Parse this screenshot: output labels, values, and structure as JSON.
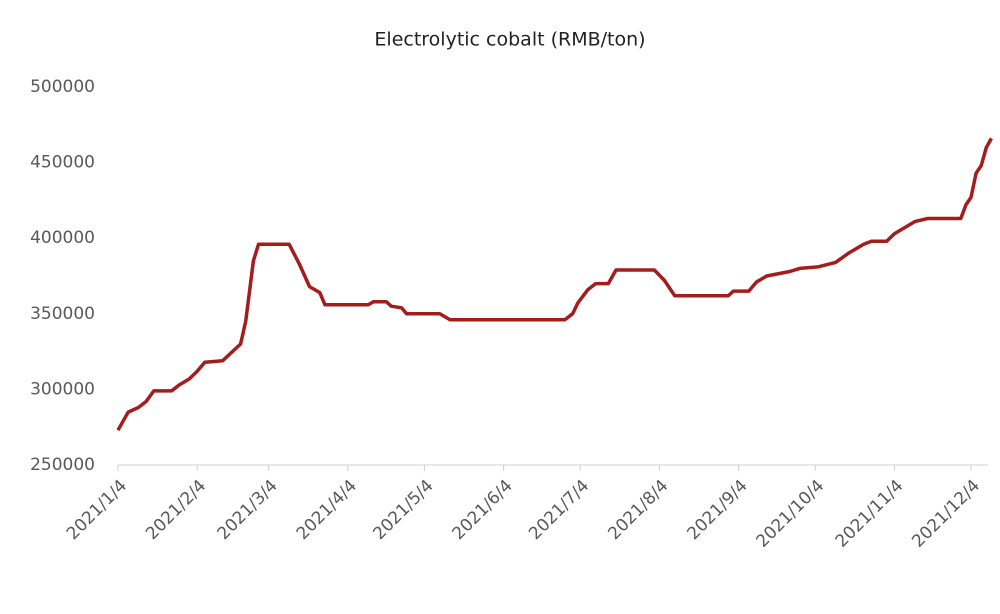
{
  "chart_data": {
    "type": "line",
    "title": "Electrolytic cobalt (RMB/ton)",
    "x": [
      "2021/1/4",
      "2021/1/8",
      "2021/1/12",
      "2021/1/15",
      "2021/1/18",
      "2021/1/25",
      "2021/1/28",
      "2021/2/1",
      "2021/2/4",
      "2021/2/7",
      "2021/2/14",
      "2021/2/21",
      "2021/2/23",
      "2021/2/26",
      "2021/2/28",
      "2021/3/12",
      "2021/3/16",
      "2021/3/20",
      "2021/3/24",
      "2021/3/26",
      "2021/4/12",
      "2021/4/14",
      "2021/4/19",
      "2021/4/21",
      "2021/4/25",
      "2021/4/27",
      "2021/5/10",
      "2021/5/14",
      "2021/6/28",
      "2021/7/1",
      "2021/7/3",
      "2021/7/7",
      "2021/7/10",
      "2021/7/15",
      "2021/7/18",
      "2021/8/2",
      "2021/8/6",
      "2021/8/10",
      "2021/8/31",
      "2021/9/2",
      "2021/9/8",
      "2021/9/11",
      "2021/9/15",
      "2021/9/24",
      "2021/9/28",
      "2021/10/5",
      "2021/10/12",
      "2021/10/17",
      "2021/10/23",
      "2021/10/26",
      "2021/11/1",
      "2021/11/4",
      "2021/11/9",
      "2021/11/12",
      "2021/11/17",
      "2021/11/30",
      "2021/12/2",
      "2021/12/4",
      "2021/12/6",
      "2021/12/8",
      "2021/12/10",
      "2021/12/12"
    ],
    "series": [
      {
        "name": "Electrolytic cobalt",
        "color": "#a31d1d",
        "values": [
          273000,
          285000,
          288000,
          292000,
          299000,
          299000,
          303000,
          307000,
          312000,
          318000,
          319000,
          330000,
          345000,
          385000,
          396000,
          396000,
          383000,
          368000,
          364000,
          356000,
          356000,
          358000,
          358000,
          355000,
          354000,
          350000,
          350000,
          346000,
          346000,
          350000,
          357000,
          366000,
          370000,
          370000,
          379000,
          379000,
          372000,
          362000,
          362000,
          365000,
          365000,
          371000,
          375000,
          378000,
          380000,
          381000,
          384000,
          390000,
          396000,
          398000,
          398000,
          403000,
          408000,
          411000,
          413000,
          413000,
          422000,
          427000,
          443000,
          448000,
          460000,
          466000
        ]
      }
    ],
    "xticks": [
      "2021/1/4",
      "2021/2/4",
      "2021/3/4",
      "2021/4/4",
      "2021/5/4",
      "2021/6/4",
      "2021/7/4",
      "2021/8/4",
      "2021/9/4",
      "2021/10/4",
      "2021/11/4",
      "2021/12/4"
    ],
    "ylim": [
      250000,
      500000
    ],
    "yticks": [
      250000,
      300000,
      350000,
      400000,
      450000,
      500000
    ],
    "grid": false
  }
}
